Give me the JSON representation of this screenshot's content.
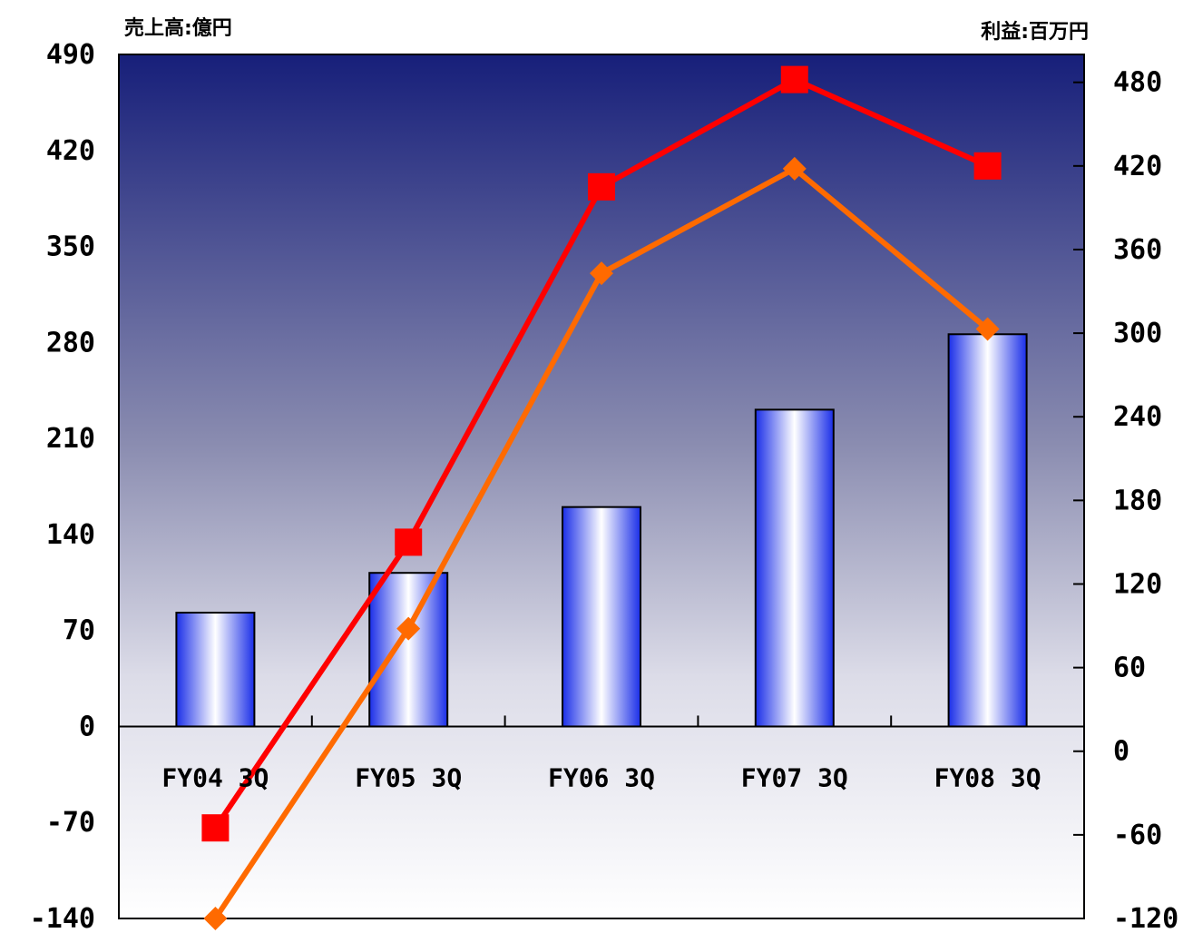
{
  "chart_data": {
    "type": "bar",
    "categories": [
      "FY04 3Q",
      "FY05 3Q",
      "FY06 3Q",
      "FY07 3Q",
      "FY08 3Q"
    ],
    "left_axis": {
      "unit_label": "売上高:億円",
      "ylim": [
        -140,
        490
      ],
      "ticks": [
        "490",
        "420",
        "350",
        "280",
        "210",
        "140",
        "70",
        "0",
        "-70",
        "-140"
      ]
    },
    "right_axis": {
      "unit_label": "利益:百万円",
      "ylim": [
        -120,
        500
      ],
      "ticks": [
        "480",
        "420",
        "360",
        "300",
        "240",
        "180",
        "120",
        "60",
        "0",
        "-60",
        "-120"
      ]
    },
    "series": [
      {
        "type": "bar",
        "axis": "left",
        "values": [
          83,
          112,
          160,
          231,
          286
        ]
      },
      {
        "type": "line",
        "axis": "right",
        "marker": "square",
        "color": "#ff0000",
        "values": [
          -55,
          150,
          405,
          482,
          420
        ]
      },
      {
        "type": "line",
        "axis": "right",
        "marker": "diamond",
        "color": "#ff6a00",
        "values": [
          -120,
          88,
          343,
          418,
          303
        ]
      }
    ],
    "grid": false,
    "legend": "none",
    "colors": {
      "plot_top": "#171f7a",
      "plot_mid": "#cfd0e0",
      "plot_bottom": "#ffffff",
      "bar_edge": "#1a2ee8",
      "bar_center": "#ffffff"
    }
  }
}
